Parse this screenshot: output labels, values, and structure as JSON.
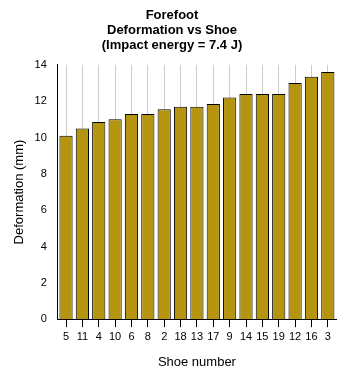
{
  "chart_data": {
    "type": "bar",
    "title": [
      "Forefoot",
      "Deformation vs Shoe",
      "(Impact energy = 7.4 J)"
    ],
    "x_label": "Shoe number",
    "y_label": "Deformation (mm)",
    "categories": [
      "5",
      "11",
      "4",
      "10",
      "6",
      "8",
      "2",
      "18",
      "13",
      "17",
      "9",
      "14",
      "15",
      "19",
      "12",
      "16",
      "3"
    ],
    "values": [
      10.1,
      10.5,
      10.85,
      11.0,
      11.3,
      11.3,
      11.55,
      11.7,
      11.7,
      11.85,
      12.2,
      12.4,
      12.4,
      12.4,
      13.0,
      13.35,
      13.6
    ],
    "color": "#b5950f",
    "ylim": [
      0,
      14
    ],
    "yticks": [
      0,
      2,
      4,
      6,
      8,
      10,
      12,
      14
    ],
    "grid": true
  }
}
